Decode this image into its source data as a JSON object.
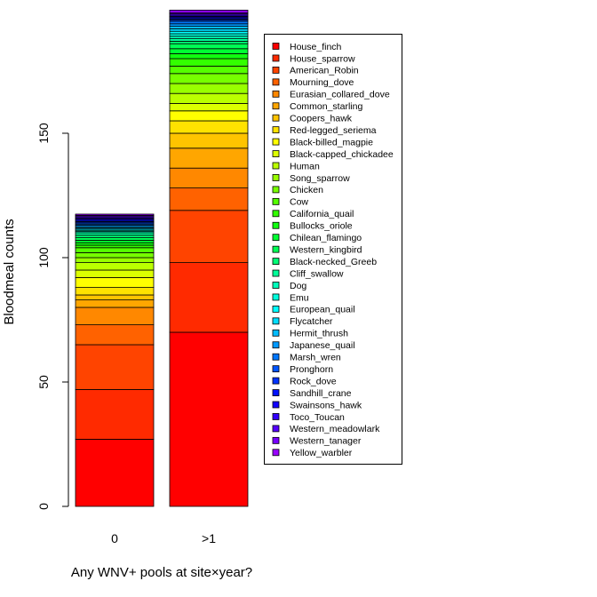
{
  "chart_data": {
    "type": "bar",
    "stacked": true,
    "xlabel": "Any WNV+ pools at site×year?",
    "ylabel": "Bloodmeal counts",
    "categories": [
      "0",
      ">1"
    ],
    "ylim": [
      0,
      190
    ],
    "yticks": [
      0,
      50,
      100,
      150
    ],
    "grid": false,
    "legend_position": "right",
    "series": [
      {
        "name": "House_finch",
        "color": "#FF0000",
        "values": [
          27,
          70
        ]
      },
      {
        "name": "House_sparrow",
        "color": "#FF2A00",
        "values": [
          20,
          28
        ]
      },
      {
        "name": "American_Robin",
        "color": "#FF4400",
        "values": [
          18,
          21
        ]
      },
      {
        "name": "Mourning_dove",
        "color": "#FF6200",
        "values": [
          8,
          9
        ]
      },
      {
        "name": "Eurasian_collared_dove",
        "color": "#FF8800",
        "values": [
          7,
          8
        ]
      },
      {
        "name": "Common_starling",
        "color": "#FFA600",
        "values": [
          3,
          8
        ]
      },
      {
        "name": "Coopers_hawk",
        "color": "#FFC400",
        "values": [
          2,
          6
        ]
      },
      {
        "name": "Red-legged_seriema",
        "color": "#FFE200",
        "values": [
          3,
          5
        ]
      },
      {
        "name": "Black-billed_magpie",
        "color": "#FFFF00",
        "values": [
          4,
          4
        ]
      },
      {
        "name": "Black-capped_chickadee",
        "color": "#DDFF00",
        "values": [
          3,
          3
        ]
      },
      {
        "name": "Human",
        "color": "#BBFF00",
        "values": [
          3,
          4
        ]
      },
      {
        "name": "Song_sparrow",
        "color": "#99FF00",
        "values": [
          2,
          4
        ]
      },
      {
        "name": "Chicken",
        "color": "#77FF00",
        "values": [
          2,
          4
        ]
      },
      {
        "name": "Cow",
        "color": "#55FF00",
        "values": [
          2,
          3
        ]
      },
      {
        "name": "California_quail",
        "color": "#33FF00",
        "values": [
          1,
          3
        ]
      },
      {
        "name": "Bullocks_oriole",
        "color": "#11FF11",
        "values": [
          1,
          2
        ]
      },
      {
        "name": "Chilean_flamingo",
        "color": "#00FF33",
        "values": [
          1,
          2
        ]
      },
      {
        "name": "Western_kingbird",
        "color": "#00FF55",
        "values": [
          1,
          2
        ]
      },
      {
        "name": "Black-necked_Greeb",
        "color": "#00FF77",
        "values": [
          1,
          1
        ]
      },
      {
        "name": "Cliff_swallow",
        "color": "#00FF99",
        "values": [
          1,
          1
        ]
      },
      {
        "name": "Dog",
        "color": "#00FFBB",
        "values": [
          0.5,
          1
        ]
      },
      {
        "name": "Emu",
        "color": "#00FFDD",
        "values": [
          0.5,
          1
        ]
      },
      {
        "name": "European_quail",
        "color": "#00FFFF",
        "values": [
          0.5,
          1
        ]
      },
      {
        "name": "Flycatcher",
        "color": "#00DDFF",
        "values": [
          0.5,
          1
        ]
      },
      {
        "name": "Hermit_thrush",
        "color": "#00BBFF",
        "values": [
          0.5,
          1
        ]
      },
      {
        "name": "Japanese_quail",
        "color": "#0099FF",
        "values": [
          0.5,
          1
        ]
      },
      {
        "name": "Marsh_wren",
        "color": "#0077FF",
        "values": [
          0.5,
          1
        ]
      },
      {
        "name": "Pronghorn",
        "color": "#0055FF",
        "values": [
          0.5,
          0.5
        ]
      },
      {
        "name": "Rock_dove",
        "color": "#0033FF",
        "values": [
          0.5,
          0.5
        ]
      },
      {
        "name": "Sandhill_crane",
        "color": "#0011FF",
        "values": [
          0.5,
          0.5
        ]
      },
      {
        "name": "Swainsons_hawk",
        "color": "#1100FF",
        "values": [
          0.5,
          0.5
        ]
      },
      {
        "name": "Toco_Toucan",
        "color": "#3300FF",
        "values": [
          0.5,
          0.5
        ]
      },
      {
        "name": "Western_meadowlark",
        "color": "#5500FF",
        "values": [
          0.5,
          0.5
        ]
      },
      {
        "name": "Western_tanager",
        "color": "#7700FF",
        "values": [
          0.5,
          0.5
        ]
      },
      {
        "name": "Yellow_warbler",
        "color": "#9900FF",
        "values": [
          0.5,
          1
        ]
      }
    ]
  }
}
